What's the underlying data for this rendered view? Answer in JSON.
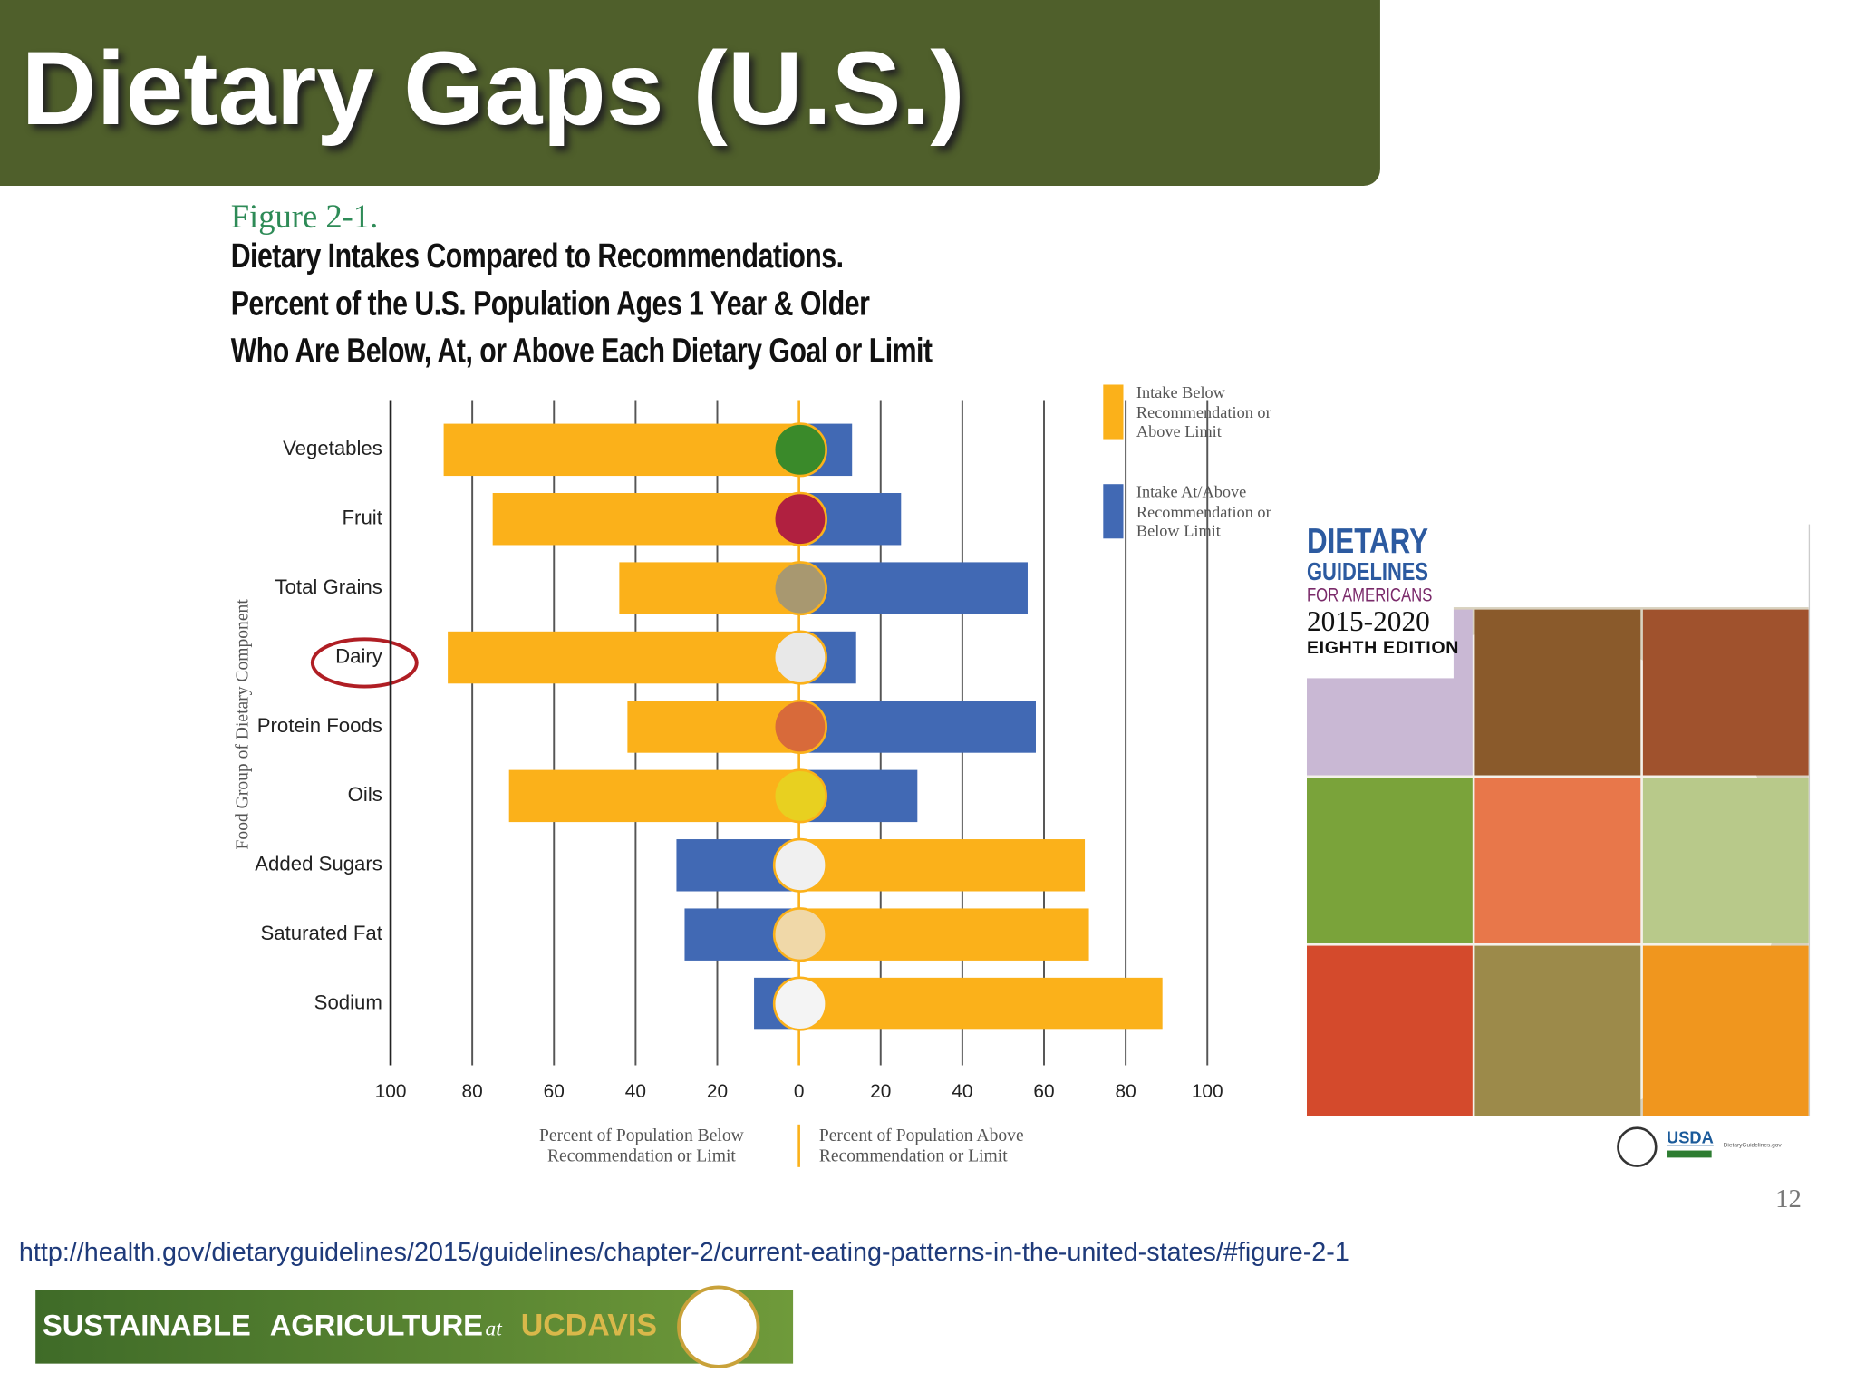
{
  "slide": {
    "title": "Dietary Gaps (U.S.)",
    "page_number": "12",
    "source_url": "http://health.gov/dietaryguidelines/2015/guidelines/chapter-2/current-eating-patterns-in-the-united-states/#figure-2-1",
    "footer_logo": {
      "text": "SUSTAINABLE AGRICULTURE",
      "at": "at",
      "org": "UCDAVIS"
    }
  },
  "figure": {
    "label": "Figure 2-1.",
    "heading": [
      "Dietary Intakes Compared to Recommendations.",
      "Percent of the U.S. Population Ages 1 Year & Older",
      "Who Are Below, At, or Above Each Dietary Goal or Limit"
    ]
  },
  "chart_data": {
    "type": "bar",
    "orientation": "horizontal",
    "categories": [
      "Vegetables",
      "Fruit",
      "Total Grains",
      "Dairy",
      "Protein Foods",
      "Oils",
      "Added Sugars",
      "Saturated Fat",
      "Sodium"
    ],
    "series": [
      {
        "name": "Intake Below Recommendation or Above Limit",
        "color": "#fbb11a",
        "values": [
          -87,
          -75,
          -44,
          -86,
          -42,
          -71,
          70,
          71,
          89
        ]
      },
      {
        "name": "Intake At/Above Recommendation or Below Limit",
        "color": "#4169b4",
        "values": [
          13,
          25,
          56,
          14,
          58,
          29,
          -30,
          -28,
          -11
        ]
      }
    ],
    "xlim": [
      -100,
      100
    ],
    "xticks": [
      {
        "value": -100,
        "label": "100"
      },
      {
        "value": -80,
        "label": "80"
      },
      {
        "value": -60,
        "label": "60"
      },
      {
        "value": -40,
        "label": "40"
      },
      {
        "value": -20,
        "label": "20"
      },
      0,
      20,
      40,
      60,
      80,
      100
    ],
    "xlabel_left": "Percent of Population Below Recommendation or Limit",
    "xlabel_right": "Percent of Population Above Recommendation or Limit",
    "ylabel": "Food Group of Dietary Component",
    "grid": true
  },
  "cover": {
    "title": "DIETARY",
    "subtitle": "GUIDELINES",
    "audience": "FOR AMERICANS",
    "years": "2015-2020",
    "edition": "EIGHTH EDITION",
    "agency": "USDA",
    "site": "DietaryGuidelines.gov"
  }
}
